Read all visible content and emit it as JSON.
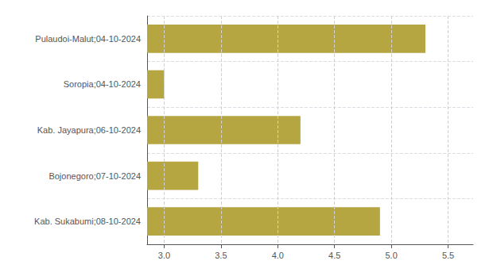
{
  "chart_data": {
    "type": "bar",
    "orientation": "horizontal",
    "categories": [
      "Pulaudoi-Malut;04-10-2024",
      "Soropia;04-10-2024",
      "Kab. Jayapura;06-10-2024",
      "Bojonegoro;07-10-2024",
      "Kab. Sukabumi;08-10-2024"
    ],
    "values": [
      5.3,
      3.0,
      4.2,
      3.3,
      4.9
    ],
    "color": "#b5a642",
    "xlim": [
      2.85,
      5.72
    ],
    "xticks": [
      {
        "value": 3.0,
        "label": "3.0"
      },
      3.5,
      {
        "value": 4.0,
        "label": "4.0"
      },
      4.5,
      {
        "value": 5.0,
        "label": "5.0"
      },
      5.5
    ],
    "grid": true
  }
}
